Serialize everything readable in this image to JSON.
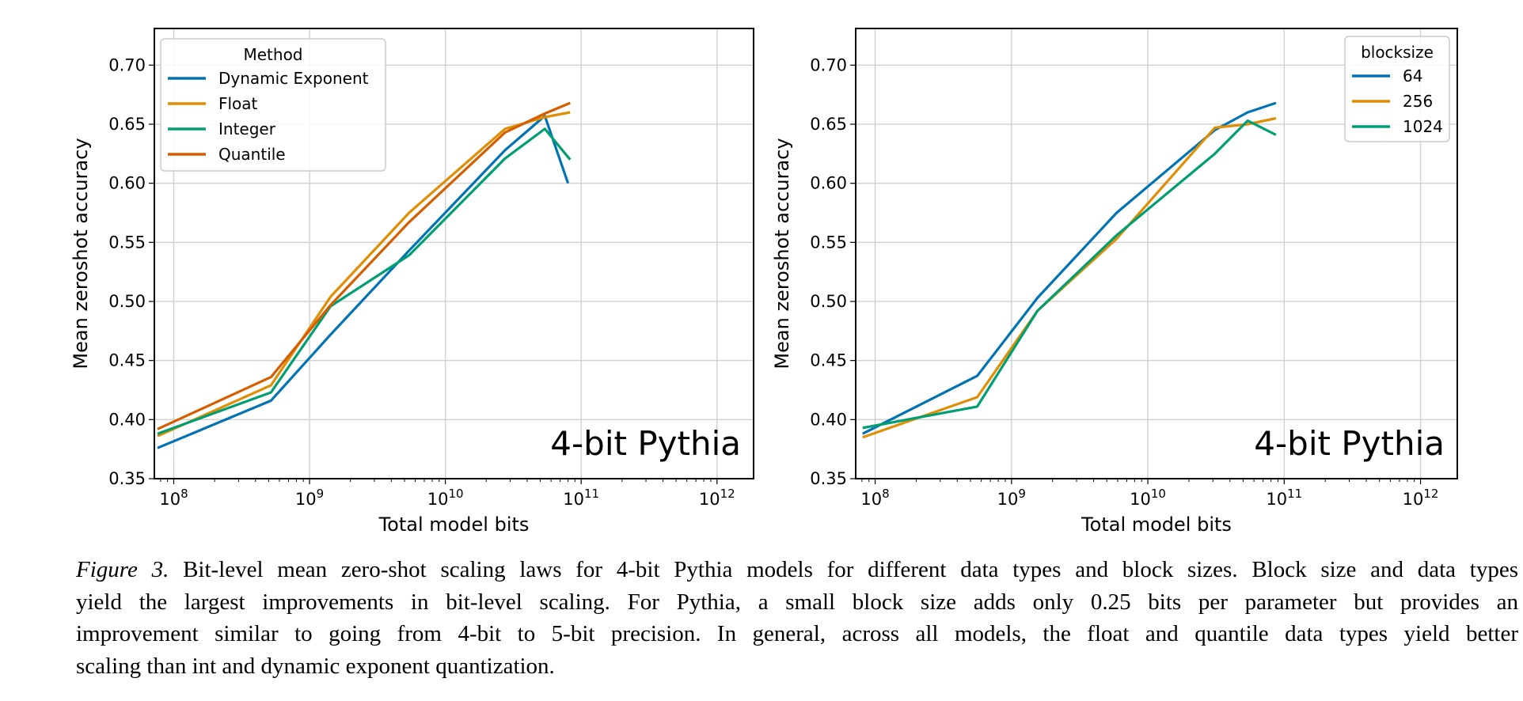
{
  "colors": {
    "blue": "#0173b2",
    "orange": "#de8f05",
    "green": "#029e73",
    "vermilion": "#d55e00",
    "grid": "#d0d0d0"
  },
  "chart_data": [
    {
      "type": "line",
      "xlabel": "Total model bits",
      "ylabel": "Mean zeroshot accuracy",
      "annotation": "4-bit Pythia",
      "xscale": "log",
      "xlim": [
        72000000.0,
        1860000000000.0
      ],
      "ylim": [
        0.35,
        0.731
      ],
      "x_ticks": [
        {
          "base": "10",
          "exp": "8",
          "value": 100000000.0
        },
        {
          "base": "10",
          "exp": "9",
          "value": 1000000000.0
        },
        {
          "base": "10",
          "exp": "10",
          "value": 10000000000.0
        },
        {
          "base": "10",
          "exp": "11",
          "value": 100000000000.0
        },
        {
          "base": "10",
          "exp": "12",
          "value": 1000000000000.0
        }
      ],
      "y_ticks": [
        "0.35",
        "0.40",
        "0.45",
        "0.50",
        "0.55",
        "0.60",
        "0.65",
        "0.70"
      ],
      "grid": true,
      "legend": {
        "title": "Method",
        "placement": "top-left"
      },
      "series": [
        {
          "name": "Dynamic Exponent",
          "color": "#0173b2",
          "x": [
            76000000.0,
            520000000.0,
            1430000000.0,
            5400000000.0,
            27500000000.0,
            54000000000.0,
            80000000000.0
          ],
          "y": [
            0.376,
            0.416,
            0.472,
            0.543,
            0.628,
            0.657,
            0.6
          ]
        },
        {
          "name": "Float",
          "color": "#de8f05",
          "x": [
            76000000.0,
            520000000.0,
            1430000000.0,
            5400000000.0,
            27500000000.0,
            54000000000.0,
            83000000000.0
          ],
          "y": [
            0.386,
            0.429,
            0.504,
            0.575,
            0.646,
            0.656,
            0.66
          ]
        },
        {
          "name": "Integer",
          "color": "#029e73",
          "x": [
            76000000.0,
            520000000.0,
            1430000000.0,
            5400000000.0,
            27500000000.0,
            54000000000.0,
            83000000000.0
          ],
          "y": [
            0.388,
            0.423,
            0.496,
            0.539,
            0.621,
            0.646,
            0.62
          ]
        },
        {
          "name": "Quantile",
          "color": "#d55e00",
          "x": [
            76000000.0,
            520000000.0,
            1430000000.0,
            5400000000.0,
            27500000000.0,
            54000000000.0,
            83000000000.0
          ],
          "y": [
            0.392,
            0.436,
            0.497,
            0.567,
            0.643,
            0.659,
            0.668
          ]
        }
      ]
    },
    {
      "type": "line",
      "xlabel": "Total model bits",
      "ylabel": "Mean zeroshot accuracy",
      "annotation": "4-bit Pythia",
      "xscale": "log",
      "xlim": [
        72000000.0,
        1860000000000.0
      ],
      "ylim": [
        0.35,
        0.731
      ],
      "x_ticks": [
        {
          "base": "10",
          "exp": "8",
          "value": 100000000.0
        },
        {
          "base": "10",
          "exp": "9",
          "value": 1000000000.0
        },
        {
          "base": "10",
          "exp": "10",
          "value": 10000000000.0
        },
        {
          "base": "10",
          "exp": "11",
          "value": 100000000000.0
        },
        {
          "base": "10",
          "exp": "12",
          "value": 1000000000000.0
        }
      ],
      "y_ticks": [
        "0.35",
        "0.40",
        "0.45",
        "0.50",
        "0.55",
        "0.60",
        "0.65",
        "0.70"
      ],
      "grid": true,
      "legend": {
        "title": "blocksize",
        "placement": "top-right"
      },
      "series": [
        {
          "name": "64",
          "color": "#0173b2",
          "x": [
            81000000.0,
            560000000.0,
            1550000000.0,
            5900000000.0,
            31000000000.0,
            54000000000.0,
            87000000000.0
          ],
          "y": [
            0.388,
            0.437,
            0.503,
            0.575,
            0.645,
            0.66,
            0.668
          ]
        },
        {
          "name": "256",
          "color": "#de8f05",
          "x": [
            81000000.0,
            560000000.0,
            1550000000.0,
            5900000000.0,
            31000000000.0,
            54000000000.0,
            87000000000.0
          ],
          "y": [
            0.385,
            0.419,
            0.492,
            0.553,
            0.647,
            0.65,
            0.655
          ]
        },
        {
          "name": "1024",
          "color": "#029e73",
          "x": [
            81000000.0,
            560000000.0,
            1550000000.0,
            5900000000.0,
            31000000000.0,
            54000000000.0,
            87000000000.0
          ],
          "y": [
            0.393,
            0.411,
            0.492,
            0.556,
            0.625,
            0.653,
            0.641
          ]
        }
      ]
    }
  ],
  "caption": {
    "label": "Figure 3.",
    "lines": [
      " Bit-level mean zero-shot scaling laws for 4-bit Pythia models for different data types and block sizes. Block size and data types",
      "yield the largest improvements in bit-level scaling. For Pythia, a small block size adds only 0.25 bits per parameter but provides an",
      "improvement similar to going from 4-bit to 5-bit precision. In general, across all models, the float and quantile data types yield better",
      "scaling than int and dynamic exponent quantization."
    ]
  }
}
